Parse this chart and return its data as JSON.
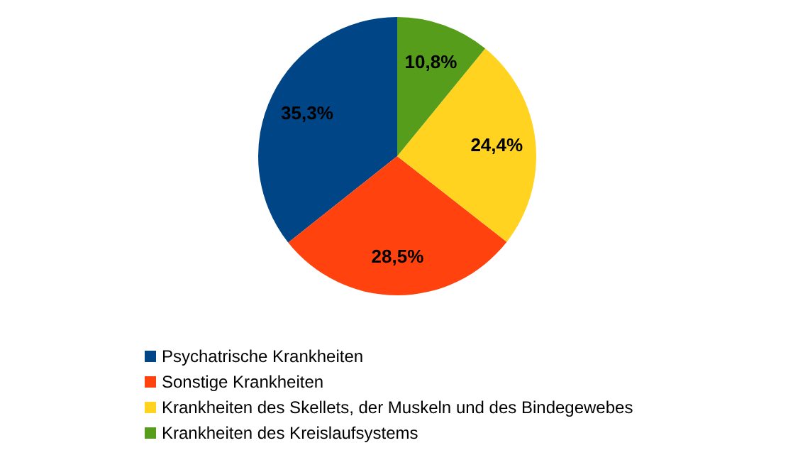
{
  "chart_data": {
    "type": "pie",
    "categories": [
      "Psychatrische Krankheiten",
      "Sonstige Krankheiten",
      "Krankheiten des Skellets, der Muskeln und des Bindegewebes",
      "Krankheiten des Kreislaufsystems"
    ],
    "values": [
      35.3,
      28.5,
      24.4,
      10.8
    ],
    "colors": [
      "#004586",
      "#ff420e",
      "#ffd320",
      "#579d1c"
    ],
    "value_labels": [
      "35,3%",
      "28,5%",
      "24,4%",
      "10,8%"
    ],
    "legend": "bottom"
  }
}
